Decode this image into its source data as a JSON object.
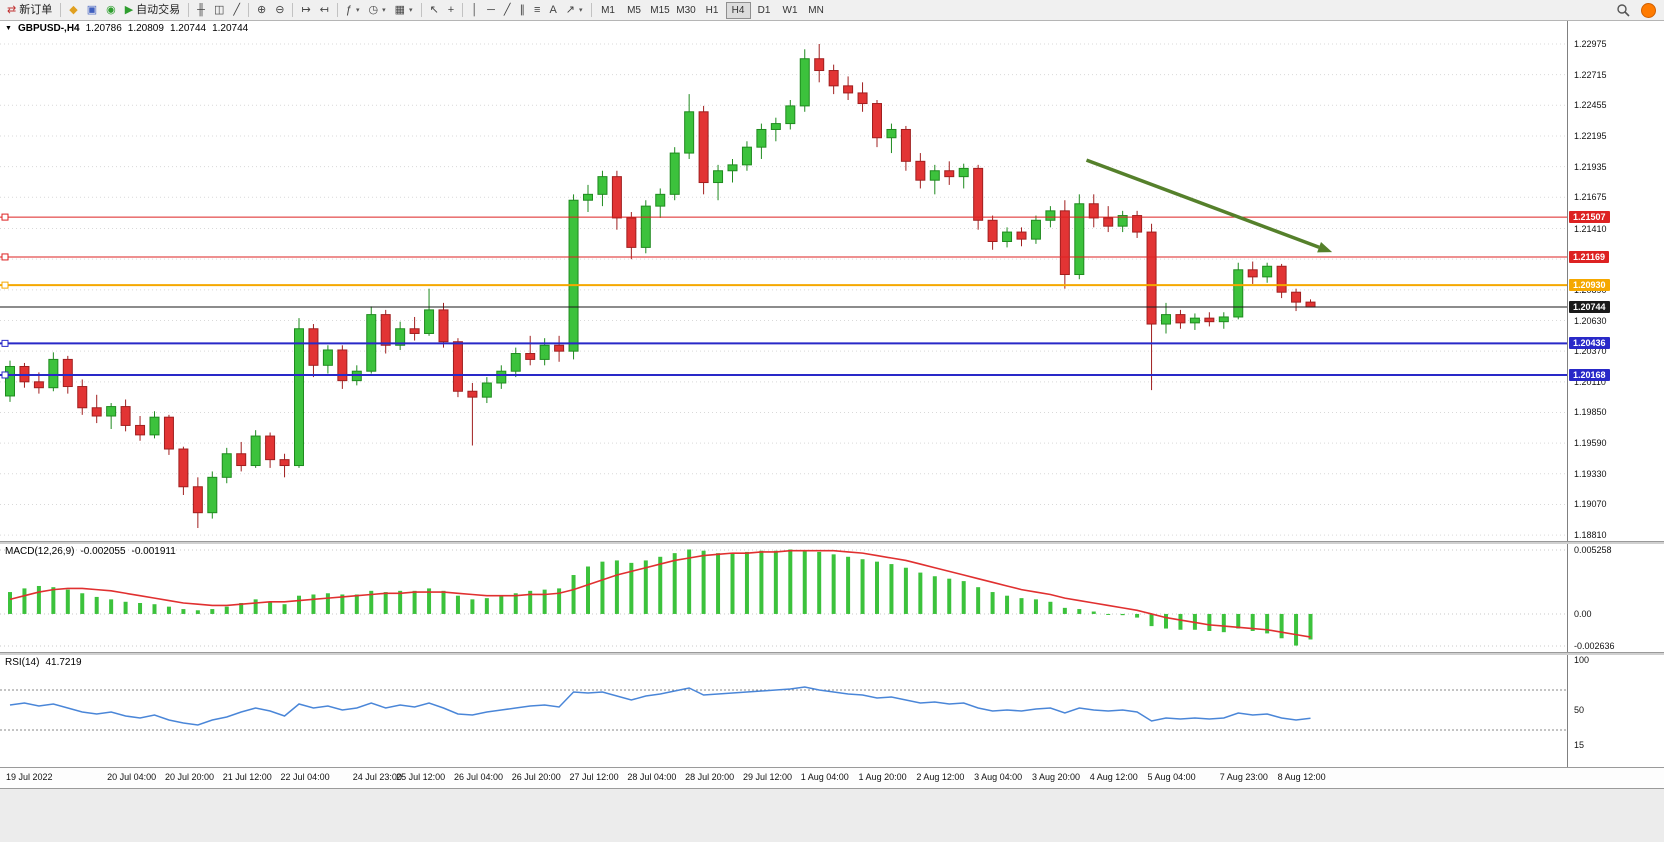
{
  "toolbar": {
    "groups": [
      {
        "items": [
          {
            "name": "new-order-button",
            "label": "新订单",
            "glyph": "⇄",
            "glyph_color": "#c03030"
          }
        ]
      },
      {
        "items": [
          {
            "name": "metaeditor-button",
            "glyph": "◆",
            "glyph_color": "#e0a020"
          },
          {
            "name": "profiles-button",
            "glyph": "▣",
            "glyph_color": "#4060c0"
          },
          {
            "name": "data-window-button",
            "glyph": "◉",
            "glyph_color": "#30a030"
          },
          {
            "name": "autotrading-button",
            "label": "自动交易",
            "glyph": "▶",
            "glyph_color": "#2f9e2f"
          }
        ]
      },
      {
        "items": [
          {
            "name": "bar-chart-button",
            "glyph": "╫"
          },
          {
            "name": "candlestick-chart-button",
            "glyph": "◫"
          },
          {
            "name": "line-chart-button",
            "glyph": "╱"
          }
        ]
      },
      {
        "items": [
          {
            "name": "zoom-in-button",
            "glyph": "⊕"
          },
          {
            "name": "zoom-out-button",
            "glyph": "⊖"
          }
        ]
      },
      {
        "items": [
          {
            "name": "auto-scroll-button",
            "glyph": "↦"
          },
          {
            "name": "chart-shift-button",
            "glyph": "↤"
          }
        ]
      },
      {
        "items": [
          {
            "name": "indicators-button",
            "glyph": "ƒ",
            "dropdown": true
          },
          {
            "name": "periods-button",
            "glyph": "◷",
            "dropdown": true
          },
          {
            "name": "templates-button",
            "glyph": "▦",
            "dropdown": true
          }
        ]
      },
      {
        "items": [
          {
            "name": "cursor-button",
            "glyph": "↖"
          },
          {
            "name": "crosshair-button",
            "glyph": "+"
          }
        ]
      },
      {
        "items": [
          {
            "name": "vertical-line-button",
            "glyph": "│"
          },
          {
            "name": "horizontal-line-button",
            "glyph": "─"
          },
          {
            "name": "trendline-button",
            "glyph": "╱"
          },
          {
            "name": "channel-button",
            "glyph": "∥"
          },
          {
            "name": "fibonacci-button",
            "glyph": "≡"
          },
          {
            "name": "text-button",
            "glyph": "A"
          },
          {
            "name": "arrows-button",
            "glyph": "↗",
            "dropdown": true
          }
        ]
      }
    ],
    "timeframes": [
      "M1",
      "M5",
      "M15",
      "M30",
      "H1",
      "H4",
      "D1",
      "W1",
      "MN"
    ],
    "active_timeframe": "H4"
  },
  "header": {
    "collapse_icon": "▼",
    "symbol": "GBPUSD-,H4",
    "open": "1.20786",
    "high": "1.20809",
    "low": "1.20744",
    "close": "1.20744"
  },
  "indicators": {
    "macd": {
      "name": "MACD(12,26,9)",
      "value_main": "-0.002055",
      "value_signal": "-0.001911"
    },
    "rsi": {
      "name": "RSI(14)",
      "value": "41.7219"
    }
  },
  "chart_data": {
    "type": "candlestick",
    "symbol": "GBPUSD-",
    "timeframe": "H4",
    "ohlc_current": {
      "open": 1.20786,
      "high": 1.20809,
      "low": 1.20744,
      "close": 1.20744
    },
    "colors": {
      "up": "#3cc23c",
      "up_stroke": "#1f8a1f",
      "down": "#e23434",
      "down_stroke": "#a01f1f",
      "grid": "#d9d9d9",
      "macd_hist": "#3cc23c",
      "macd_signal": "#e03030",
      "rsi_line": "#4a86d8",
      "arrow": "#55802b"
    },
    "price_axis": {
      "max": 1.2317,
      "min": 1.1876,
      "ticks": [
        "1.22975",
        "1.22715",
        "1.22455",
        "1.22195",
        "1.21935",
        "1.21675",
        "1.21410",
        "1.21150",
        "1.20890",
        "1.20630",
        "1.20370",
        "1.20110",
        "1.19850",
        "1.19590",
        "1.19330",
        "1.19070",
        "1.18810"
      ]
    },
    "hlines": [
      {
        "name": "resistance-line-1",
        "price": 1.21507,
        "label": "1.21507",
        "color": "#dd2222",
        "width": 1,
        "anchor": true
      },
      {
        "name": "resistance-line-2",
        "price": 1.21169,
        "label": "1.21169",
        "color": "#dd2222",
        "width": 1,
        "anchor": true
      },
      {
        "name": "pivot-line",
        "price": 1.2093,
        "label": "1.20930",
        "color": "#f5a800",
        "width": 2,
        "anchor": true
      },
      {
        "name": "current-price-line",
        "price": 1.20744,
        "label": "1.20744",
        "color": "#1a1a1a",
        "width": 1,
        "anchor": false
      },
      {
        "name": "support-line-1",
        "price": 1.20436,
        "label": "1.20436",
        "color": "#2929c8",
        "width": 2,
        "anchor": true
      },
      {
        "name": "support-line-2",
        "price": 1.20168,
        "label": "1.20168",
        "color": "#2929c8",
        "width": 2,
        "anchor": true
      }
    ],
    "trend_arrow": {
      "i1": 74.5,
      "p1": 1.2199,
      "i2": 91.5,
      "p2": 1.2121
    },
    "time_axis": [
      {
        "i": 0,
        "t": "19 Jul 2022"
      },
      {
        "i": 7,
        "t": "20 Jul 04:00"
      },
      {
        "i": 11,
        "t": "20 Jul 20:00"
      },
      {
        "i": 15,
        "t": "21 Jul 12:00"
      },
      {
        "i": 19,
        "t": "22 Jul 04:00"
      },
      {
        "i": 24,
        "t": "24 Jul 23:00"
      },
      {
        "i": 27,
        "t": "25 Jul 12:00"
      },
      {
        "i": 31,
        "t": "26 Jul 04:00"
      },
      {
        "i": 35,
        "t": "26 Jul 20:00"
      },
      {
        "i": 39,
        "t": "27 Jul 12:00"
      },
      {
        "i": 43,
        "t": "28 Jul 04:00"
      },
      {
        "i": 47,
        "t": "28 Jul 20:00"
      },
      {
        "i": 51,
        "t": "29 Jul 12:00"
      },
      {
        "i": 55,
        "t": "1 Aug 04:00"
      },
      {
        "i": 59,
        "t": "1 Aug 20:00"
      },
      {
        "i": 63,
        "t": "2 Aug 12:00"
      },
      {
        "i": 67,
        "t": "3 Aug 04:00"
      },
      {
        "i": 71,
        "t": "3 Aug 20:00"
      },
      {
        "i": 75,
        "t": "4 Aug 12:00"
      },
      {
        "i": 79,
        "t": "5 Aug 04:00"
      },
      {
        "i": 84,
        "t": "7 Aug 23:00"
      },
      {
        "i": 88,
        "t": "8 Aug 12:00"
      }
    ],
    "candles": [
      [
        1.1999,
        1.2029,
        1.1994,
        1.2024
      ],
      [
        1.2024,
        1.2027,
        1.2006,
        1.2011
      ],
      [
        1.2011,
        1.2019,
        1.2001,
        1.2006
      ],
      [
        1.2006,
        1.2036,
        1.2003,
        1.203
      ],
      [
        1.203,
        1.2033,
        1.2001,
        1.2007
      ],
      [
        1.2007,
        1.2013,
        1.1983,
        1.1989
      ],
      [
        1.1989,
        1.2,
        1.1976,
        1.1982
      ],
      [
        1.1982,
        1.1993,
        1.1971,
        1.199
      ],
      [
        1.199,
        1.1996,
        1.1969,
        1.1974
      ],
      [
        1.1974,
        1.1982,
        1.1961,
        1.1966
      ],
      [
        1.1966,
        1.1986,
        1.1963,
        1.1981
      ],
      [
        1.1981,
        1.1983,
        1.1949,
        1.1954
      ],
      [
        1.1954,
        1.1956,
        1.1915,
        1.1922
      ],
      [
        1.1922,
        1.193,
        1.1887,
        1.19
      ],
      [
        1.19,
        1.1935,
        1.1895,
        1.193
      ],
      [
        1.193,
        1.1955,
        1.1925,
        1.195
      ],
      [
        1.195,
        1.196,
        1.1935,
        1.194
      ],
      [
        1.194,
        1.197,
        1.1938,
        1.1965
      ],
      [
        1.1965,
        1.1968,
        1.1938,
        1.1945
      ],
      [
        1.1945,
        1.195,
        1.193,
        1.194
      ],
      [
        1.194,
        1.2065,
        1.1938,
        1.2056
      ],
      [
        1.2056,
        1.206,
        1.2015,
        1.2025
      ],
      [
        1.2025,
        1.2042,
        1.2018,
        1.2038
      ],
      [
        1.2038,
        1.2042,
        1.2005,
        1.2012
      ],
      [
        1.2012,
        1.2025,
        1.2008,
        1.202
      ],
      [
        1.202,
        1.2075,
        1.2018,
        1.2068
      ],
      [
        1.2068,
        1.2072,
        1.2035,
        1.2042
      ],
      [
        1.2042,
        1.2062,
        1.2038,
        1.2056
      ],
      [
        1.2056,
        1.2066,
        1.2046,
        1.2052
      ],
      [
        1.2052,
        1.209,
        1.205,
        1.2072
      ],
      [
        1.2072,
        1.2078,
        1.204,
        1.2045
      ],
      [
        1.2045,
        1.2048,
        1.1998,
        1.2003
      ],
      [
        1.2003,
        1.201,
        1.1957,
        1.1998
      ],
      [
        1.1998,
        1.2015,
        1.1993,
        1.201
      ],
      [
        1.201,
        1.2025,
        1.2005,
        1.202
      ],
      [
        1.202,
        1.204,
        1.2015,
        1.2035
      ],
      [
        1.2035,
        1.205,
        1.2025,
        1.203
      ],
      [
        1.203,
        1.2048,
        1.2025,
        1.2042
      ],
      [
        1.2042,
        1.205,
        1.2028,
        1.2037
      ],
      [
        1.2037,
        1.217,
        1.203,
        1.2165
      ],
      [
        1.2165,
        1.2178,
        1.2155,
        1.217
      ],
      [
        1.217,
        1.219,
        1.216,
        1.2185
      ],
      [
        1.2185,
        1.219,
        1.214,
        1.215
      ],
      [
        1.215,
        1.2155,
        1.2115,
        1.2125
      ],
      [
        1.2125,
        1.2165,
        1.212,
        1.216
      ],
      [
        1.216,
        1.2175,
        1.215,
        1.217
      ],
      [
        1.217,
        1.221,
        1.2165,
        1.2205
      ],
      [
        1.2205,
        1.2255,
        1.22,
        1.224
      ],
      [
        1.224,
        1.2245,
        1.217,
        1.218
      ],
      [
        1.218,
        1.2195,
        1.2165,
        1.219
      ],
      [
        1.219,
        1.22,
        1.218,
        1.2195
      ],
      [
        1.2195,
        1.2215,
        1.219,
        1.221
      ],
      [
        1.221,
        1.223,
        1.22,
        1.2225
      ],
      [
        1.2225,
        1.2235,
        1.2215,
        1.223
      ],
      [
        1.223,
        1.225,
        1.2225,
        1.2245
      ],
      [
        1.2245,
        1.2293,
        1.224,
        1.2285
      ],
      [
        1.2285,
        1.22975,
        1.2265,
        1.2275
      ],
      [
        1.2275,
        1.228,
        1.2255,
        1.2262
      ],
      [
        1.2262,
        1.227,
        1.225,
        1.2256
      ],
      [
        1.2256,
        1.2265,
        1.224,
        1.2247
      ],
      [
        1.2247,
        1.225,
        1.221,
        1.2218
      ],
      [
        1.2218,
        1.223,
        1.2205,
        1.2225
      ],
      [
        1.2225,
        1.2228,
        1.219,
        1.2198
      ],
      [
        1.2198,
        1.2205,
        1.2175,
        1.2182
      ],
      [
        1.2182,
        1.2195,
        1.217,
        1.219
      ],
      [
        1.219,
        1.2198,
        1.2178,
        1.2185
      ],
      [
        1.2185,
        1.2196,
        1.2175,
        1.2192
      ],
      [
        1.2192,
        1.2195,
        1.214,
        1.2148
      ],
      [
        1.2148,
        1.2152,
        1.2123,
        1.213
      ],
      [
        1.213,
        1.2142,
        1.2125,
        1.2138
      ],
      [
        1.2138,
        1.2142,
        1.2126,
        1.2132
      ],
      [
        1.2132,
        1.2152,
        1.2128,
        1.2148
      ],
      [
        1.2148,
        1.216,
        1.2142,
        1.2156
      ],
      [
        1.2156,
        1.2165,
        1.209,
        1.2102
      ],
      [
        1.2102,
        1.217,
        1.2098,
        1.2162
      ],
      [
        1.2162,
        1.217,
        1.2142,
        1.215
      ],
      [
        1.215,
        1.216,
        1.2138,
        1.2143
      ],
      [
        1.2143,
        1.2156,
        1.2138,
        1.2152
      ],
      [
        1.2152,
        1.2156,
        1.2133,
        1.2138
      ],
      [
        1.2138,
        1.2145,
        1.2004,
        1.206
      ],
      [
        1.206,
        1.2078,
        1.2052,
        1.2068
      ],
      [
        1.2068,
        1.2072,
        1.2056,
        1.2061
      ],
      [
        1.2061,
        1.2069,
        1.2055,
        1.2065
      ],
      [
        1.2065,
        1.207,
        1.2058,
        1.2062
      ],
      [
        1.2062,
        1.207,
        1.2056,
        1.2066
      ],
      [
        1.2066,
        1.2112,
        1.2064,
        1.2106
      ],
      [
        1.2106,
        1.2113,
        1.2094,
        1.21
      ],
      [
        1.21,
        1.2112,
        1.2095,
        1.2109
      ],
      [
        1.2109,
        1.2111,
        1.2082,
        1.2087
      ],
      [
        1.2087,
        1.209,
        1.2071,
        1.20786
      ],
      [
        1.20786,
        1.20809,
        1.20744,
        1.20744
      ]
    ],
    "macd": {
      "max": 0.005258,
      "min": -0.002636,
      "scale_labels": [
        "0.005258",
        "0.00",
        "-0.002636"
      ],
      "hist": [
        0.0018,
        0.0021,
        0.0023,
        0.0022,
        0.002,
        0.0017,
        0.0014,
        0.0012,
        0.001,
        0.0009,
        0.0008,
        0.0006,
        0.0004,
        0.0003,
        0.0004,
        0.0006,
        0.0009,
        0.0012,
        0.001,
        0.0008,
        0.0015,
        0.0016,
        0.0017,
        0.0016,
        0.0016,
        0.0019,
        0.0018,
        0.0019,
        0.0019,
        0.0021,
        0.0019,
        0.0015,
        0.0012,
        0.0013,
        0.0015,
        0.0017,
        0.0019,
        0.002,
        0.0021,
        0.0032,
        0.0039,
        0.0043,
        0.0044,
        0.0042,
        0.0044,
        0.0047,
        0.005,
        0.0053,
        0.0052,
        0.005,
        0.005,
        0.0051,
        0.0052,
        0.0052,
        0.0053,
        0.0052,
        0.0051,
        0.0049,
        0.0047,
        0.0045,
        0.0043,
        0.0041,
        0.0038,
        0.0034,
        0.0031,
        0.0029,
        0.0027,
        0.0022,
        0.0018,
        0.0015,
        0.0013,
        0.0012,
        0.001,
        0.0005,
        0.0004,
        0.0002,
        0.0,
        -0.0001,
        -0.0003,
        -0.001,
        -0.0012,
        -0.0013,
        -0.0013,
        -0.0014,
        -0.0015,
        -0.0012,
        -0.0014,
        -0.0016,
        -0.002,
        -0.0026,
        -0.0021
      ],
      "signal": [
        0.0012,
        0.0015,
        0.0018,
        0.002,
        0.0021,
        0.0021,
        0.002,
        0.0019,
        0.0017,
        0.0015,
        0.0013,
        0.0011,
        0.0009,
        0.0008,
        0.0007,
        0.0007,
        0.0008,
        0.0009,
        0.001,
        0.001,
        0.0011,
        0.0012,
        0.0013,
        0.0014,
        0.0015,
        0.0016,
        0.0017,
        0.0017,
        0.0018,
        0.0018,
        0.0018,
        0.0017,
        0.0016,
        0.0015,
        0.0015,
        0.0015,
        0.0016,
        0.0016,
        0.0017,
        0.002,
        0.0024,
        0.0028,
        0.0032,
        0.0035,
        0.0038,
        0.0041,
        0.0044,
        0.0046,
        0.0048,
        0.0049,
        0.005,
        0.005,
        0.0051,
        0.0051,
        0.0052,
        0.0052,
        0.0052,
        0.0052,
        0.0051,
        0.005,
        0.0048,
        0.0046,
        0.0044,
        0.0041,
        0.0038,
        0.0035,
        0.0032,
        0.0029,
        0.0026,
        0.0023,
        0.002,
        0.0018,
        0.0016,
        0.0013,
        0.0011,
        0.0009,
        0.0007,
        0.0005,
        0.0003,
        0.0,
        -0.0003,
        -0.0005,
        -0.0007,
        -0.0009,
        -0.001,
        -0.0011,
        -0.0012,
        -0.0013,
        -0.0015,
        -0.0017,
        -0.0019
      ]
    },
    "rsi": {
      "max": 100,
      "min": 0,
      "scale_labels": [
        {
          "v": 100,
          "t": "100"
        },
        {
          "v": 50,
          "t": "50"
        },
        {
          "v": 15,
          "t": "15"
        }
      ],
      "levels": [
        70,
        30
      ],
      "values": [
        55,
        57,
        54,
        56,
        52,
        48,
        46,
        48,
        44,
        42,
        45,
        40,
        37,
        35,
        40,
        43,
        48,
        52,
        49,
        44,
        56,
        52,
        54,
        50,
        52,
        57,
        52,
        55,
        53,
        57,
        52,
        46,
        45,
        48,
        50,
        52,
        54,
        55,
        53,
        68,
        67,
        68,
        64,
        60,
        64,
        66,
        69,
        72,
        65,
        66,
        67,
        68,
        69,
        70,
        71,
        73,
        70,
        68,
        66,
        65,
        62,
        63,
        60,
        57,
        58,
        56,
        57,
        52,
        49,
        50,
        49,
        51,
        52,
        47,
        52,
        50,
        49,
        50,
        48,
        39,
        42,
        41,
        42,
        41,
        42,
        47,
        45,
        46,
        42,
        40,
        41.72
      ]
    }
  }
}
